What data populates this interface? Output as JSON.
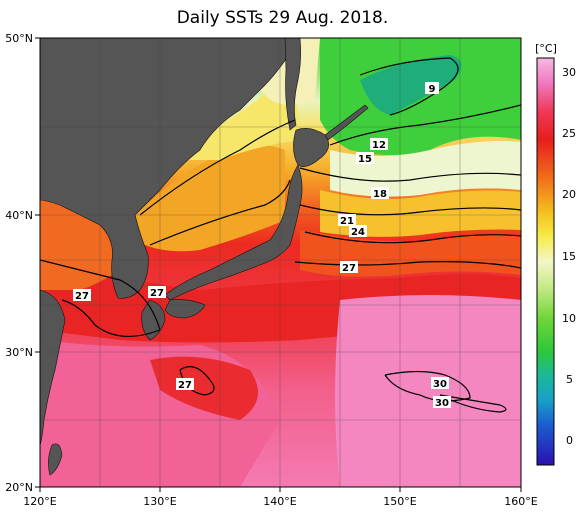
{
  "title": "Daily SSTs 29 Aug. 2018.",
  "axes": {
    "x_ticks": [
      "120°E",
      "130°E",
      "140°E",
      "150°E",
      "160°E"
    ],
    "y_ticks": [
      "50°N",
      "40°N",
      "30°N",
      "20°N"
    ]
  },
  "colorbar": {
    "unit": "[°C]",
    "ticks": [
      "30",
      "25",
      "20",
      "15",
      "10",
      "5",
      "0"
    ]
  },
  "contour_labels": [
    "9",
    "12",
    "15",
    "18",
    "21",
    "24",
    "27",
    "27",
    "27",
    "27",
    "27",
    "30",
    "30"
  ]
}
